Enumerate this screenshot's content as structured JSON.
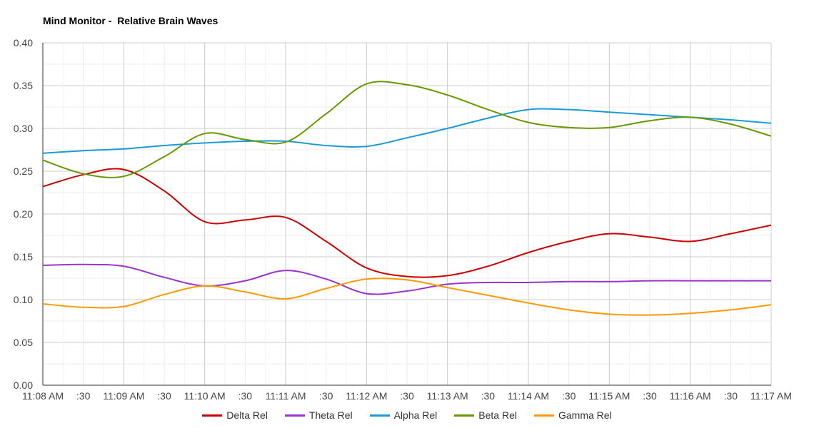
{
  "chart_data": {
    "type": "line",
    "title": "Mind Monitor -  Relative Brain Waves",
    "xlabel": "",
    "ylabel": "",
    "x": [
      "11:08 AM",
      ":30",
      "11:09 AM",
      ":30",
      "11:10 AM",
      ":30",
      "11:11 AM",
      ":30",
      "11:12 AM",
      ":30",
      "11:13 AM",
      ":30",
      "11:14 AM",
      ":30",
      "11:15 AM",
      ":30",
      "11:16 AM",
      ":30",
      "11:17 AM"
    ],
    "yticks": [
      "0.00",
      "0.05",
      "0.10",
      "0.15",
      "0.20",
      "0.25",
      "0.30",
      "0.35",
      "0.40"
    ],
    "ylim": [
      0,
      0.4
    ],
    "grid": true,
    "legend_position": "bottom",
    "series": [
      {
        "name": "Delta Rel",
        "color": "#cc0000",
        "values": [
          0.232,
          0.246,
          0.252,
          0.227,
          0.191,
          0.193,
          0.196,
          0.168,
          0.137,
          0.127,
          0.128,
          0.139,
          0.155,
          0.168,
          0.177,
          0.173,
          0.168,
          0.177,
          0.187
        ]
      },
      {
        "name": "Theta Rel",
        "color": "#9933cc",
        "values": [
          0.14,
          0.141,
          0.139,
          0.126,
          0.116,
          0.122,
          0.134,
          0.124,
          0.107,
          0.11,
          0.118,
          0.12,
          0.12,
          0.121,
          0.121,
          0.122,
          0.122,
          0.122,
          0.122
        ]
      },
      {
        "name": "Alpha Rel",
        "color": "#1a9ad6",
        "values": [
          0.271,
          0.274,
          0.276,
          0.28,
          0.283,
          0.285,
          0.285,
          0.28,
          0.279,
          0.289,
          0.3,
          0.312,
          0.322,
          0.322,
          0.319,
          0.316,
          0.313,
          0.31,
          0.306
        ]
      },
      {
        "name": "Beta Rel",
        "color": "#669900",
        "values": [
          0.263,
          0.247,
          0.244,
          0.267,
          0.294,
          0.287,
          0.284,
          0.317,
          0.352,
          0.351,
          0.339,
          0.322,
          0.307,
          0.301,
          0.301,
          0.309,
          0.313,
          0.305,
          0.291
        ]
      },
      {
        "name": "Gamma Rel",
        "color": "#ff9900",
        "values": [
          0.095,
          0.091,
          0.092,
          0.106,
          0.116,
          0.109,
          0.101,
          0.113,
          0.124,
          0.123,
          0.114,
          0.105,
          0.096,
          0.088,
          0.083,
          0.082,
          0.084,
          0.088,
          0.094
        ]
      }
    ]
  }
}
